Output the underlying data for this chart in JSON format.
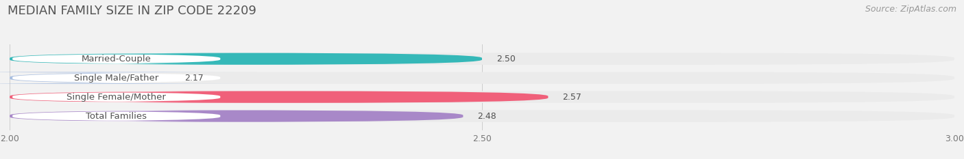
{
  "title": "MEDIAN FAMILY SIZE IN ZIP CODE 22209",
  "source": "Source: ZipAtlas.com",
  "categories": [
    "Married-Couple",
    "Single Male/Father",
    "Single Female/Mother",
    "Total Families"
  ],
  "values": [
    2.5,
    2.17,
    2.57,
    2.48
  ],
  "bar_colors": [
    "#35b8b8",
    "#aabfe0",
    "#f0607a",
    "#a888c8"
  ],
  "xlim": [
    2.0,
    3.0
  ],
  "xticks": [
    2.0,
    2.5,
    3.0
  ],
  "xtick_labels": [
    "2.00",
    "2.50",
    "3.00"
  ],
  "bar_height": 0.62,
  "background_color": "#f2f2f2",
  "row_bg_color": "#ebebeb",
  "label_box_color": "#ffffff",
  "title_fontsize": 13,
  "source_fontsize": 9,
  "label_fontsize": 9.5,
  "value_fontsize": 9,
  "tick_fontsize": 9
}
